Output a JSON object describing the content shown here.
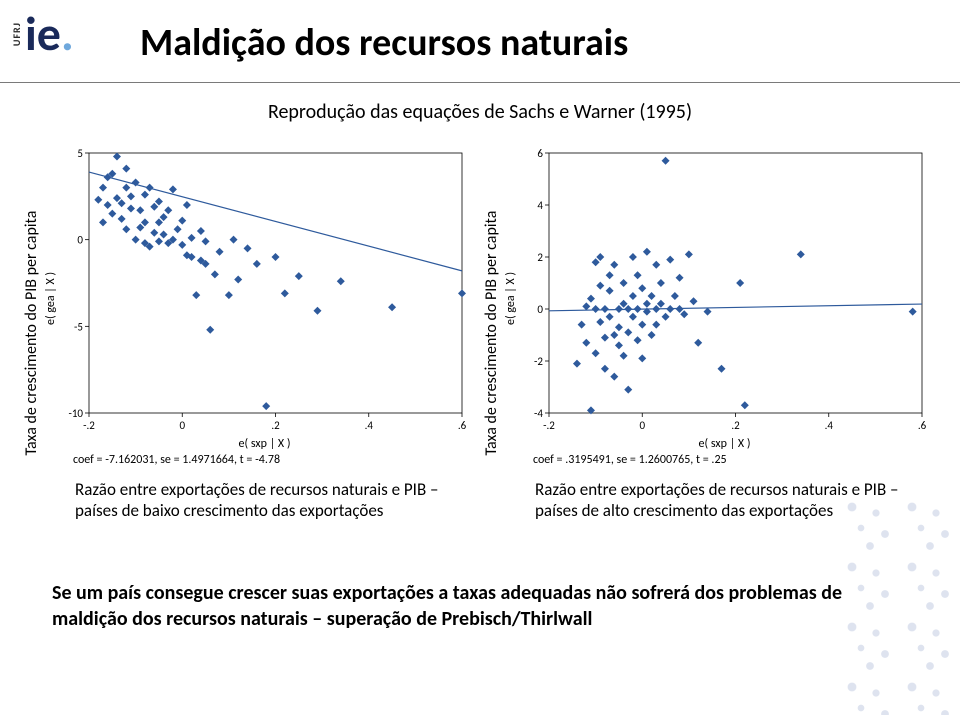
{
  "logo": {
    "ufrj": "UFRJ",
    "ie": "ie",
    "dot": "."
  },
  "title": "Maldição dos recursos naturais",
  "subtitle": "Reprodução das equações de Sachs e Warner (1995)",
  "left": {
    "ylabel_outer": "Taxa de crescimento do PIB per capita",
    "ylabel_stata": "e( gea | X )",
    "xlabel_stata": "e( sxp | X )",
    "coef": "coef = -7.162031, se = 1.4971664, t = -4.78",
    "caption": "Razão entre exportações de recursos naturais e PIB – países de baixo crescimento das exportações",
    "chart": {
      "type": "scatter",
      "xlim": [
        -0.2,
        0.6
      ],
      "ylim": [
        -10,
        5
      ],
      "xticks": [
        -0.2,
        0,
        0.2,
        0.4,
        0.6
      ],
      "xticklabels": [
        "-.2",
        "0",
        ".2",
        ".4",
        ".6"
      ],
      "yticks": [
        -10,
        -5,
        0,
        5
      ],
      "yticklabels": [
        "-10",
        "-5",
        "0",
        "5"
      ],
      "marker_color": "#2e5a9c",
      "marker_size": 4,
      "line_color": "#2e5a9c",
      "line_width": 1.2,
      "line": {
        "x1": -0.2,
        "y1": 3.9,
        "x2": 0.6,
        "y2": -1.8
      },
      "plot_border_color": "#000000",
      "background_color": "#ffffff",
      "tick_fontsize": 11,
      "points": [
        [
          -0.18,
          2.3
        ],
        [
          -0.17,
          3.0
        ],
        [
          -0.17,
          1.0
        ],
        [
          -0.16,
          3.6
        ],
        [
          -0.16,
          2.0
        ],
        [
          -0.15,
          3.8
        ],
        [
          -0.15,
          1.5
        ],
        [
          -0.14,
          4.8
        ],
        [
          -0.14,
          2.4
        ],
        [
          -0.13,
          2.1
        ],
        [
          -0.13,
          1.2
        ],
        [
          -0.12,
          3.0
        ],
        [
          -0.12,
          0.6
        ],
        [
          -0.12,
          4.1
        ],
        [
          -0.11,
          1.8
        ],
        [
          -0.11,
          2.5
        ],
        [
          -0.1,
          3.3
        ],
        [
          -0.1,
          0.0
        ],
        [
          -0.09,
          0.7
        ],
        [
          -0.09,
          1.7
        ],
        [
          -0.08,
          -0.2
        ],
        [
          -0.08,
          2.6
        ],
        [
          -0.08,
          1.0
        ],
        [
          -0.07,
          3.0
        ],
        [
          -0.07,
          -0.4
        ],
        [
          -0.06,
          0.4
        ],
        [
          -0.06,
          1.9
        ],
        [
          -0.05,
          1.0
        ],
        [
          -0.05,
          2.2
        ],
        [
          -0.05,
          -0.1
        ],
        [
          -0.04,
          1.3
        ],
        [
          -0.04,
          0.3
        ],
        [
          -0.03,
          1.7
        ],
        [
          -0.03,
          -0.2
        ],
        [
          -0.02,
          2.9
        ],
        [
          -0.02,
          0.0
        ],
        [
          -0.01,
          0.6
        ],
        [
          0.0,
          1.1
        ],
        [
          0.0,
          -0.3
        ],
        [
          0.01,
          -0.9
        ],
        [
          0.01,
          2.0
        ],
        [
          0.02,
          0.1
        ],
        [
          0.02,
          -1.0
        ],
        [
          0.03,
          -3.2
        ],
        [
          0.04,
          -1.2
        ],
        [
          0.04,
          0.5
        ],
        [
          0.05,
          -0.1
        ],
        [
          0.05,
          -1.4
        ],
        [
          0.06,
          -5.2
        ],
        [
          0.07,
          -2.0
        ],
        [
          0.08,
          -0.7
        ],
        [
          0.1,
          -3.2
        ],
        [
          0.11,
          0.0
        ],
        [
          0.12,
          -2.3
        ],
        [
          0.14,
          -0.5
        ],
        [
          0.16,
          -1.4
        ],
        [
          0.18,
          -9.6
        ],
        [
          0.2,
          -1.0
        ],
        [
          0.22,
          -3.1
        ],
        [
          0.25,
          -2.1
        ],
        [
          0.29,
          -4.1
        ],
        [
          0.34,
          -2.4
        ],
        [
          0.45,
          -3.9
        ],
        [
          0.6,
          -3.1
        ]
      ]
    }
  },
  "right": {
    "ylabel_outer": "Taxa de crescimento do PIB per capita",
    "ylabel_stata": "e( gea | X )",
    "xlabel_stata": "e( sxp | X )",
    "coef": "coef = .3195491, se = 1.2600765, t = .25",
    "caption": "Razão entre exportações de recursos naturais e PIB – países de alto crescimento das exportações",
    "chart": {
      "type": "scatter",
      "xlim": [
        -0.2,
        0.6
      ],
      "ylim": [
        -4,
        6
      ],
      "xticks": [
        -0.2,
        0,
        0.2,
        0.4,
        0.6
      ],
      "xticklabels": [
        "-.2",
        "0",
        ".2",
        ".4",
        ".6"
      ],
      "yticks": [
        -4,
        -2,
        0,
        2,
        4,
        6
      ],
      "yticklabels": [
        "-4",
        "-2",
        "0",
        "2",
        "4",
        "6"
      ],
      "marker_color": "#2e5a9c",
      "marker_size": 4,
      "line_color": "#2e5a9c",
      "line_width": 1.2,
      "line": {
        "x1": -0.2,
        "y1": -0.07,
        "x2": 0.6,
        "y2": 0.19
      },
      "plot_border_color": "#000000",
      "background_color": "#ffffff",
      "tick_fontsize": 11,
      "points": [
        [
          -0.14,
          -2.1
        ],
        [
          -0.13,
          -0.6
        ],
        [
          -0.12,
          0.1
        ],
        [
          -0.12,
          -1.3
        ],
        [
          -0.11,
          -3.9
        ],
        [
          -0.11,
          0.4
        ],
        [
          -0.1,
          1.8
        ],
        [
          -0.1,
          0.0
        ],
        [
          -0.1,
          -1.7
        ],
        [
          -0.09,
          0.9
        ],
        [
          -0.09,
          -0.5
        ],
        [
          -0.09,
          2.0
        ],
        [
          -0.08,
          0.0
        ],
        [
          -0.08,
          -1.1
        ],
        [
          -0.08,
          -2.3
        ],
        [
          -0.07,
          0.7
        ],
        [
          -0.07,
          -0.3
        ],
        [
          -0.07,
          1.3
        ],
        [
          -0.06,
          -1.0
        ],
        [
          -0.06,
          -2.6
        ],
        [
          -0.06,
          1.7
        ],
        [
          -0.05,
          0.0
        ],
        [
          -0.05,
          -0.7
        ],
        [
          -0.05,
          -1.4
        ],
        [
          -0.04,
          1.0
        ],
        [
          -0.04,
          0.2
        ],
        [
          -0.04,
          -1.8
        ],
        [
          -0.03,
          -3.1
        ],
        [
          -0.03,
          0.0
        ],
        [
          -0.03,
          -0.9
        ],
        [
          -0.02,
          2.0
        ],
        [
          -0.02,
          0.5
        ],
        [
          -0.02,
          -0.3
        ],
        [
          -0.01,
          -1.2
        ],
        [
          -0.01,
          0.0
        ],
        [
          -0.01,
          1.3
        ],
        [
          0.0,
          -0.6
        ],
        [
          0.0,
          0.8
        ],
        [
          0.0,
          -1.9
        ],
        [
          0.01,
          0.2
        ],
        [
          0.01,
          -0.1
        ],
        [
          0.01,
          2.2
        ],
        [
          0.02,
          0.5
        ],
        [
          0.02,
          -1.0
        ],
        [
          0.03,
          1.7
        ],
        [
          0.03,
          0.0
        ],
        [
          0.03,
          -0.6
        ],
        [
          0.04,
          1.0
        ],
        [
          0.04,
          0.2
        ],
        [
          0.05,
          5.7
        ],
        [
          0.05,
          -0.3
        ],
        [
          0.06,
          0.0
        ],
        [
          0.06,
          1.9
        ],
        [
          0.07,
          0.5
        ],
        [
          0.08,
          0.0
        ],
        [
          0.08,
          1.2
        ],
        [
          0.09,
          -0.2
        ],
        [
          0.1,
          2.1
        ],
        [
          0.11,
          0.3
        ],
        [
          0.12,
          -1.3
        ],
        [
          0.14,
          -0.1
        ],
        [
          0.17,
          -2.3
        ],
        [
          0.21,
          1.0
        ],
        [
          0.22,
          -3.7
        ],
        [
          0.34,
          2.1
        ],
        [
          0.58,
          -0.1
        ]
      ]
    }
  },
  "bottom_text": "Se um país consegue crescer suas exportações a taxas adequadas não sofrerá dos problemas de maldição dos recursos naturais – superação de Prebisch/Thirlwall"
}
